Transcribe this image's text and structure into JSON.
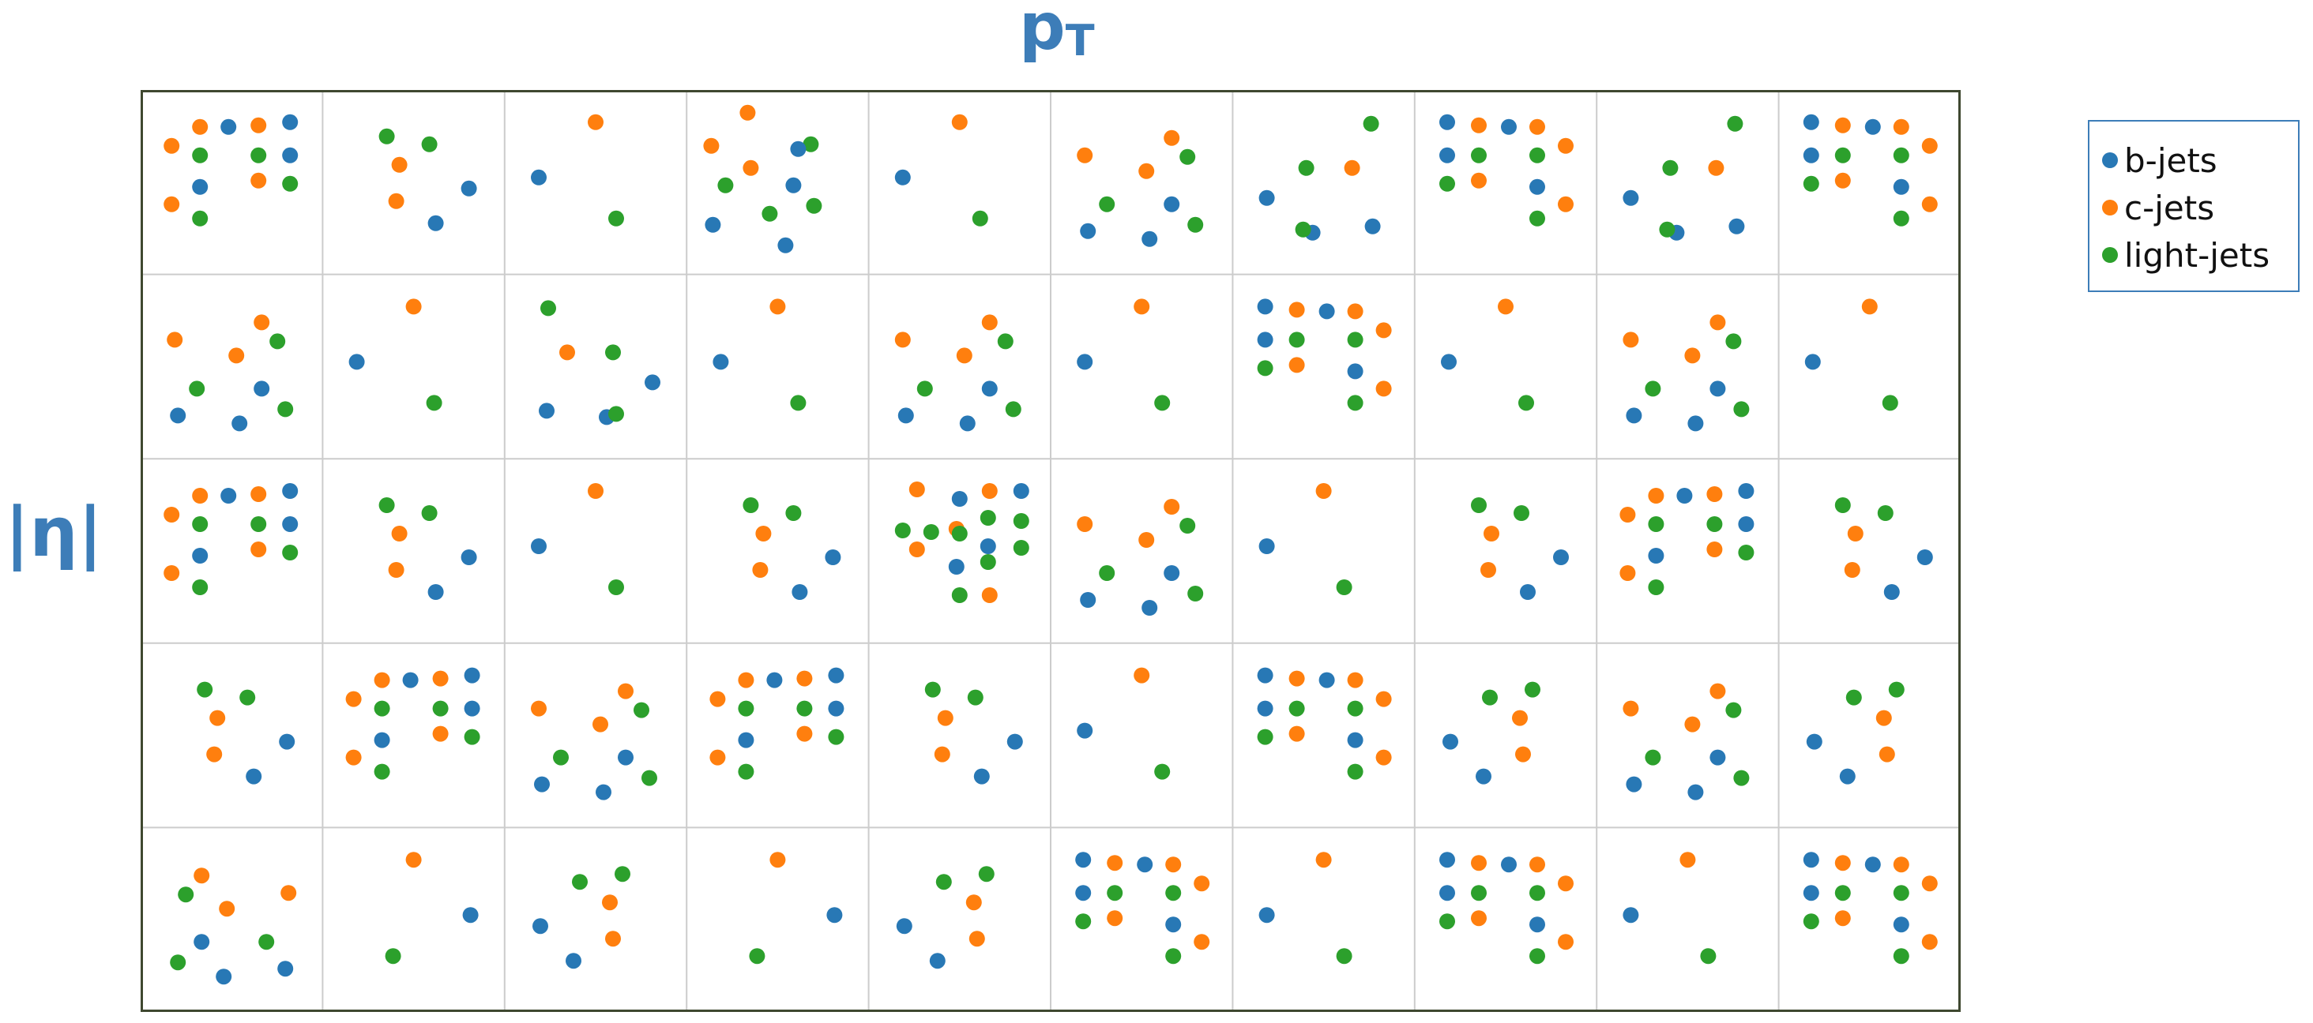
{
  "axes": {
    "x_label": "p",
    "x_label_sub": "T",
    "y_label": "|η|"
  },
  "legend": [
    {
      "label": "b-jets",
      "color": "#2878b5"
    },
    {
      "label": "c-jets",
      "color": "#ff7f0e"
    },
    {
      "label": "light-jets",
      "color": "#2ca02c"
    }
  ],
  "grid": {
    "rows": 5,
    "cols": 10,
    "border_color": "#3f4830",
    "divider_color": "#cccccc",
    "cell_counts": [
      [
        13,
        6,
        3,
        11,
        3,
        9,
        7,
        13,
        7,
        13
      ],
      [
        9,
        3,
        7,
        3,
        9,
        3,
        13,
        3,
        9,
        3
      ],
      [
        13,
        6,
        3,
        6,
        17,
        9,
        3,
        6,
        13,
        6
      ],
      [
        6,
        13,
        9,
        13,
        6,
        3,
        13,
        6,
        9,
        6
      ],
      [
        9,
        3,
        6,
        3,
        6,
        13,
        3,
        13,
        3,
        13
      ]
    ]
  }
}
